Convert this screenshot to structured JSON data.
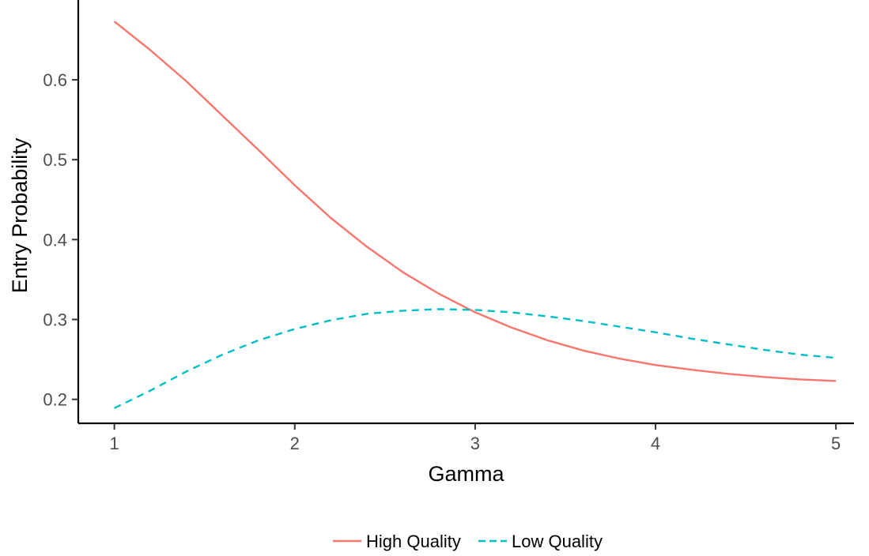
{
  "chart_data": {
    "type": "line",
    "xlabel": "Gamma",
    "ylabel": "Entry Probability",
    "xlim": [
      0.8,
      5.1
    ],
    "ylim": [
      0.17,
      0.69
    ],
    "x_ticks": [
      1,
      2,
      3,
      4,
      5
    ],
    "x_tick_labels": [
      "1",
      "2",
      "3",
      "4",
      "5"
    ],
    "y_ticks": [
      0.2,
      0.3,
      0.4,
      0.5,
      0.6
    ],
    "y_tick_labels": [
      "0.2",
      "0.3",
      "0.4",
      "0.5",
      "0.6"
    ],
    "grid": false,
    "legend_position": "bottom",
    "x": [
      1.0,
      1.2,
      1.4,
      1.6,
      1.8,
      2.0,
      2.2,
      2.4,
      2.6,
      2.8,
      3.0,
      3.2,
      3.4,
      3.6,
      3.8,
      4.0,
      4.2,
      4.4,
      4.6,
      4.8,
      5.0
    ],
    "series": [
      {
        "name": "High Quality",
        "color": "#F8766D",
        "dash": "solid",
        "values": [
          0.673,
          0.637,
          0.598,
          0.555,
          0.512,
          0.468,
          0.427,
          0.391,
          0.359,
          0.332,
          0.309,
          0.29,
          0.274,
          0.261,
          0.251,
          0.243,
          0.237,
          0.232,
          0.228,
          0.225,
          0.223
        ]
      },
      {
        "name": "Low Quality",
        "color": "#00BFC4",
        "dash": "dashed",
        "values": [
          0.189,
          0.211,
          0.235,
          0.256,
          0.274,
          0.288,
          0.299,
          0.307,
          0.311,
          0.313,
          0.312,
          0.309,
          0.304,
          0.298,
          0.291,
          0.284,
          0.276,
          0.269,
          0.262,
          0.256,
          0.252
        ]
      }
    ]
  }
}
